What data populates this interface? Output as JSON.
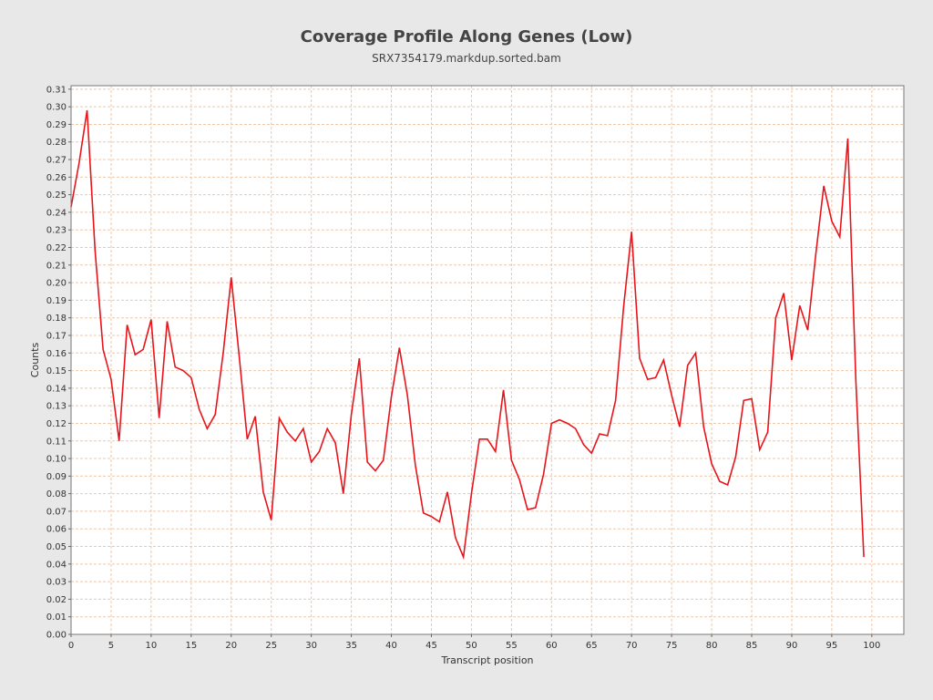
{
  "chart_data": {
    "type": "line",
    "title": "Coverage Profile Along Genes (Low)",
    "subtitle": "SRX7354179.markdup.sorted.bam",
    "xlabel": "Transcript position",
    "ylabel": "Counts",
    "xlim": [
      0,
      104
    ],
    "ylim": [
      0,
      0.312
    ],
    "x_ticks": [
      0,
      5,
      10,
      15,
      20,
      25,
      30,
      35,
      40,
      45,
      50,
      55,
      60,
      65,
      70,
      75,
      80,
      85,
      90,
      95,
      100
    ],
    "y_ticks": [
      0.0,
      0.01,
      0.02,
      0.03,
      0.04,
      0.05,
      0.06,
      0.07,
      0.08,
      0.09,
      0.1,
      0.11,
      0.12,
      0.13,
      0.14,
      0.15,
      0.16,
      0.17,
      0.18,
      0.19,
      0.2,
      0.21,
      0.22,
      0.23,
      0.24,
      0.25,
      0.26,
      0.27,
      0.28,
      0.29,
      0.3,
      0.31
    ],
    "grid": true,
    "colors": {
      "line": "#e8141b",
      "grid": "#f0c8a8",
      "plot_bg": "#ffffff",
      "page_bg": "#e8e8e8"
    },
    "series": [
      {
        "x": [
          0,
          1,
          2,
          3,
          4,
          5,
          6,
          7,
          8,
          9,
          10,
          11,
          12,
          13,
          14,
          15,
          16,
          17,
          18,
          19,
          20,
          21,
          22,
          23,
          24,
          25,
          26,
          27,
          28,
          29,
          30,
          31,
          32,
          33,
          34,
          35,
          36,
          37,
          38,
          39,
          40,
          41,
          42,
          43,
          44,
          45,
          46,
          47,
          48,
          49,
          50,
          51,
          52,
          53,
          54,
          55,
          56,
          57,
          58,
          59,
          60,
          61,
          62,
          63,
          64,
          65,
          66,
          67,
          68,
          69,
          70,
          71,
          72,
          73,
          74,
          75,
          76,
          77,
          78,
          79,
          80,
          81,
          82,
          83,
          84,
          85,
          86,
          87,
          88,
          89,
          90,
          91,
          92,
          93,
          94,
          95,
          96,
          97,
          98,
          99
        ],
        "values": [
          0.243,
          0.268,
          0.298,
          0.218,
          0.162,
          0.145,
          0.11,
          0.176,
          0.159,
          0.162,
          0.179,
          0.123,
          0.178,
          0.152,
          0.15,
          0.146,
          0.128,
          0.117,
          0.125,
          0.16,
          0.203,
          0.158,
          0.111,
          0.124,
          0.081,
          0.065,
          0.123,
          0.115,
          0.11,
          0.117,
          0.098,
          0.104,
          0.117,
          0.109,
          0.08,
          0.125,
          0.157,
          0.098,
          0.093,
          0.099,
          0.135,
          0.163,
          0.136,
          0.096,
          0.069,
          0.067,
          0.064,
          0.081,
          0.055,
          0.044,
          0.08,
          0.111,
          0.111,
          0.104,
          0.139,
          0.099,
          0.088,
          0.071,
          0.072,
          0.091,
          0.12,
          0.122,
          0.12,
          0.117,
          0.108,
          0.103,
          0.114,
          0.113,
          0.133,
          0.186,
          0.229,
          0.157,
          0.145,
          0.146,
          0.156,
          0.136,
          0.118,
          0.153,
          0.16,
          0.118,
          0.097,
          0.087,
          0.085,
          0.101,
          0.133,
          0.134,
          0.105,
          0.115,
          0.18,
          0.194,
          0.156,
          0.187,
          0.173,
          0.216,
          0.255,
          0.235,
          0.226,
          0.282,
          0.145,
          0.044
        ]
      }
    ]
  }
}
